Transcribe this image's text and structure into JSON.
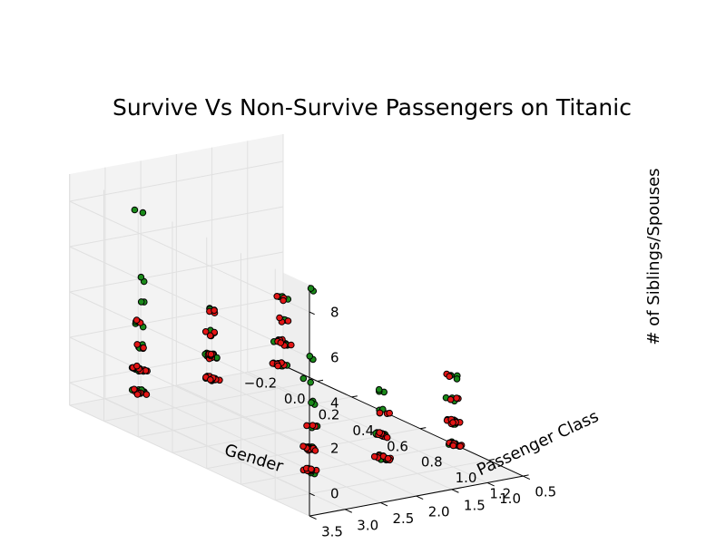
{
  "chart_data": {
    "type": "scatter3d",
    "title": "Survive Vs Non-Survive Passengers on Titanic",
    "xlabel": "Gender",
    "ylabel": "Passenger Class",
    "zlabel": "# of Siblings/Spouses",
    "xlim": [
      -0.2,
      1.2
    ],
    "ylim": [
      0.5,
      3.5
    ],
    "zlim": [
      -1,
      9.2
    ],
    "x_ticks": [
      "−0.2",
      "0.0",
      "0.2",
      "0.4",
      "0.6",
      "0.8",
      "1.0",
      "1.2"
    ],
    "y_ticks": [
      "0.5",
      "1.0",
      "1.5",
      "2.0",
      "2.5",
      "3.0",
      "3.5"
    ],
    "z_ticks": [
      "0",
      "2",
      "4",
      "6",
      "8"
    ],
    "grid": true,
    "colors": {
      "survived": "#1a8a1a",
      "not_survived": "#e31515",
      "edge": "#000000",
      "pane": "#f0f0f0",
      "grid": "#e0e0e0"
    },
    "series": [
      {
        "color": "survived",
        "points": [
          [
            0,
            1,
            0
          ],
          [
            0,
            1,
            1
          ],
          [
            0,
            1,
            2
          ],
          [
            0,
            1,
            3
          ],
          [
            0,
            2,
            0
          ],
          [
            0,
            2,
            1
          ],
          [
            0,
            2,
            2
          ],
          [
            0,
            2,
            3
          ],
          [
            0,
            3,
            0
          ],
          [
            0,
            3,
            1
          ],
          [
            0,
            3,
            2
          ],
          [
            0,
            3,
            3
          ],
          [
            0,
            3,
            4
          ],
          [
            0,
            3,
            5
          ],
          [
            0,
            3,
            8
          ],
          [
            1,
            1,
            0
          ],
          [
            1,
            1,
            1
          ],
          [
            1,
            1,
            2
          ],
          [
            1,
            1,
            3
          ],
          [
            1,
            2,
            0
          ],
          [
            1,
            2,
            1
          ],
          [
            1,
            2,
            2
          ],
          [
            1,
            2,
            3
          ],
          [
            1,
            3,
            0
          ],
          [
            1,
            3,
            1
          ],
          [
            1,
            3,
            2
          ],
          [
            1,
            3,
            3
          ],
          [
            1,
            3,
            4
          ],
          [
            1,
            3,
            5
          ],
          [
            1,
            3,
            8
          ]
        ]
      },
      {
        "color": "not_survived",
        "points": [
          [
            0,
            1,
            0
          ],
          [
            0,
            1,
            1
          ],
          [
            0,
            1,
            2
          ],
          [
            0,
            1,
            3
          ],
          [
            0,
            2,
            0
          ],
          [
            0,
            2,
            1
          ],
          [
            0,
            2,
            2
          ],
          [
            0,
            2,
            3
          ],
          [
            0,
            3,
            0
          ],
          [
            0,
            3,
            1
          ],
          [
            0,
            3,
            2
          ],
          [
            0,
            3,
            3
          ],
          [
            1,
            1,
            0
          ],
          [
            1,
            1,
            1
          ],
          [
            1,
            1,
            2
          ],
          [
            1,
            1,
            3
          ],
          [
            1,
            2,
            0
          ],
          [
            1,
            2,
            1
          ],
          [
            1,
            2,
            2
          ],
          [
            1,
            3,
            0
          ],
          [
            1,
            3,
            1
          ],
          [
            1,
            3,
            2
          ]
        ]
      }
    ]
  }
}
